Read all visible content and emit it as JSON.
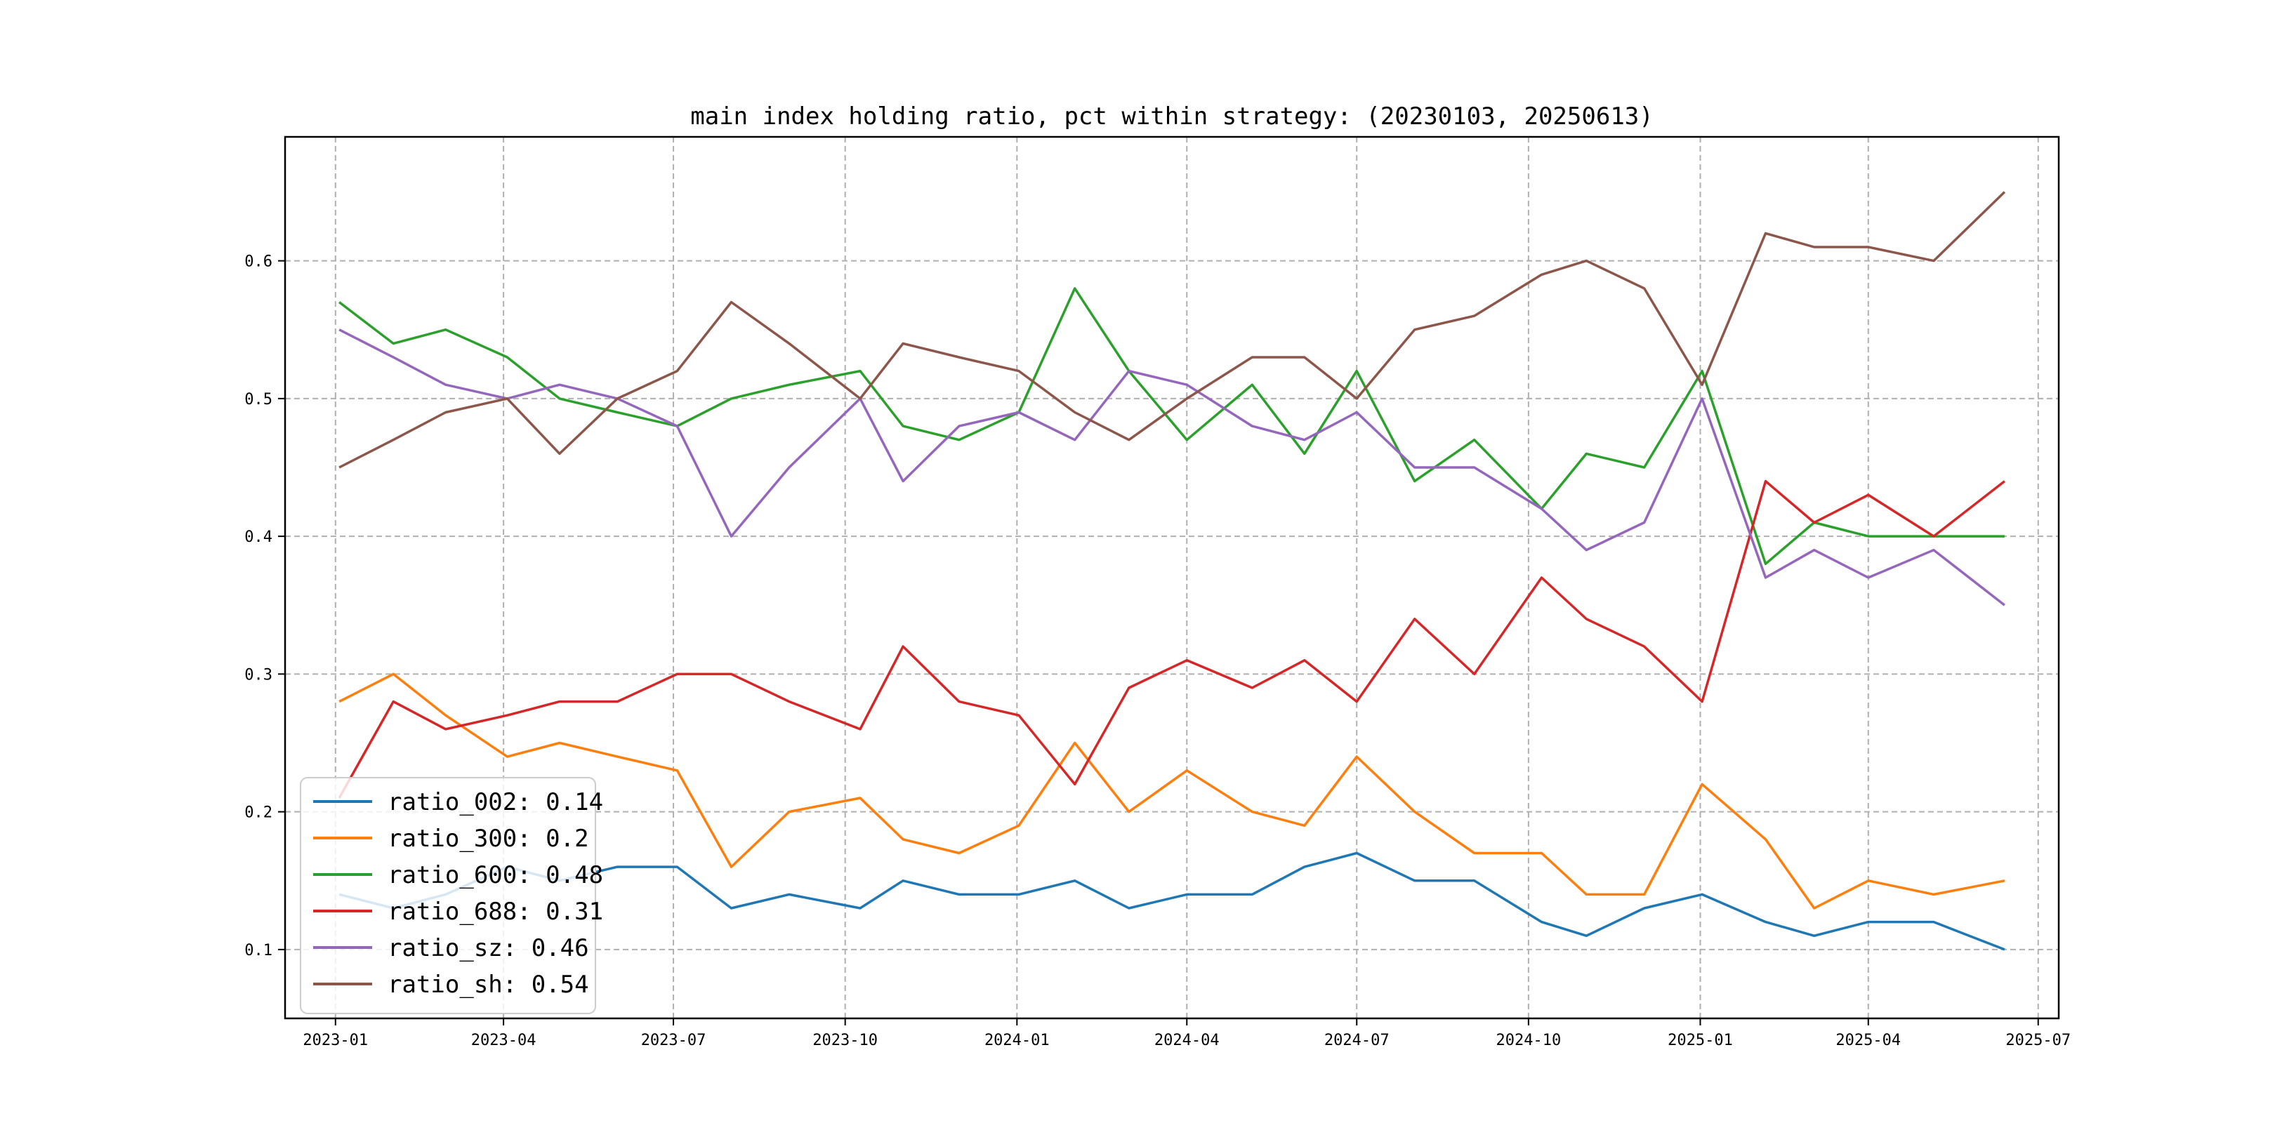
{
  "chart_data": {
    "type": "line",
    "title": "main index holding ratio, pct within strategy: (20230103, 20250613)",
    "xlabel": "",
    "ylabel": "",
    "xlim": [
      "2022-12-05",
      "2025-07-12"
    ],
    "ylim": [
      0.05,
      0.69
    ],
    "grid": true,
    "legend_position": "lower-left",
    "x_ticks": [
      "2023-01",
      "2023-04",
      "2023-07",
      "2023-10",
      "2024-01",
      "2024-04",
      "2024-07",
      "2024-10",
      "2025-01",
      "2025-04",
      "2025-07"
    ],
    "y_ticks": [
      "0.1",
      "0.2",
      "0.3",
      "0.4",
      "0.5",
      "0.6"
    ],
    "x": [
      "2023-01-03",
      "2023-02-01",
      "2023-03-01",
      "2023-04-03",
      "2023-05-01",
      "2023-06-01",
      "2023-07-03",
      "2023-08-01",
      "2023-09-01",
      "2023-10-09",
      "2023-11-01",
      "2023-12-01",
      "2024-01-02",
      "2024-02-01",
      "2024-03-01",
      "2024-04-01",
      "2024-05-06",
      "2024-06-03",
      "2024-07-01",
      "2024-08-01",
      "2024-09-02",
      "2024-10-08",
      "2024-11-01",
      "2024-12-02",
      "2025-01-02",
      "2025-02-05",
      "2025-03-03",
      "2025-04-01",
      "2025-05-06",
      "2025-06-13"
    ],
    "series": [
      {
        "name": "ratio_002",
        "legend": "ratio_002: 0.14",
        "color": "#1f77b4",
        "values": [
          0.14,
          0.13,
          0.14,
          0.16,
          0.15,
          0.16,
          0.16,
          0.13,
          0.14,
          0.13,
          0.15,
          0.14,
          0.14,
          0.15,
          0.13,
          0.14,
          0.14,
          0.16,
          0.17,
          0.15,
          0.15,
          0.12,
          0.11,
          0.13,
          0.14,
          0.12,
          0.11,
          0.12,
          0.12,
          0.1
        ]
      },
      {
        "name": "ratio_300",
        "legend": "ratio_300: 0.2",
        "color": "#ff7f0e",
        "values": [
          0.28,
          0.3,
          0.27,
          0.24,
          0.25,
          0.24,
          0.23,
          0.16,
          0.2,
          0.21,
          0.18,
          0.17,
          0.19,
          0.25,
          0.2,
          0.23,
          0.2,
          0.19,
          0.24,
          0.2,
          0.17,
          0.17,
          0.14,
          0.14,
          0.22,
          0.18,
          0.13,
          0.15,
          0.14,
          0.15
        ]
      },
      {
        "name": "ratio_600",
        "legend": "ratio_600: 0.48",
        "color": "#2ca02c",
        "values": [
          0.57,
          0.54,
          0.55,
          0.53,
          0.5,
          0.49,
          0.48,
          0.5,
          0.51,
          0.52,
          0.48,
          0.47,
          0.49,
          0.58,
          0.52,
          0.47,
          0.51,
          0.46,
          0.52,
          0.44,
          0.47,
          0.42,
          0.46,
          0.45,
          0.52,
          0.38,
          0.41,
          0.4,
          0.4,
          0.4
        ]
      },
      {
        "name": "ratio_688",
        "legend": "ratio_688: 0.31",
        "color": "#d62728",
        "values": [
          0.21,
          0.28,
          0.26,
          0.27,
          0.28,
          0.28,
          0.3,
          0.3,
          0.28,
          0.26,
          0.32,
          0.28,
          0.27,
          0.22,
          0.29,
          0.31,
          0.29,
          0.31,
          0.28,
          0.34,
          0.3,
          0.37,
          0.34,
          0.32,
          0.28,
          0.44,
          0.41,
          0.43,
          0.4,
          0.44
        ]
      },
      {
        "name": "ratio_sz",
        "legend": "ratio_sz: 0.46",
        "color": "#9467bd",
        "values": [
          0.55,
          0.53,
          0.51,
          0.5,
          0.51,
          0.5,
          0.48,
          0.4,
          0.45,
          0.5,
          0.44,
          0.48,
          0.49,
          0.47,
          0.52,
          0.51,
          0.48,
          0.47,
          0.49,
          0.45,
          0.45,
          0.42,
          0.39,
          0.41,
          0.5,
          0.37,
          0.39,
          0.37,
          0.39,
          0.35
        ]
      },
      {
        "name": "ratio_sh",
        "legend": "ratio_sh: 0.54",
        "color": "#8c564b",
        "values": [
          0.45,
          0.47,
          0.49,
          0.5,
          0.46,
          0.5,
          0.52,
          0.57,
          0.54,
          0.5,
          0.54,
          0.53,
          0.52,
          0.49,
          0.47,
          0.5,
          0.53,
          0.53,
          0.5,
          0.55,
          0.56,
          0.59,
          0.6,
          0.58,
          0.51,
          0.62,
          0.61,
          0.61,
          0.6,
          0.65
        ]
      }
    ]
  }
}
